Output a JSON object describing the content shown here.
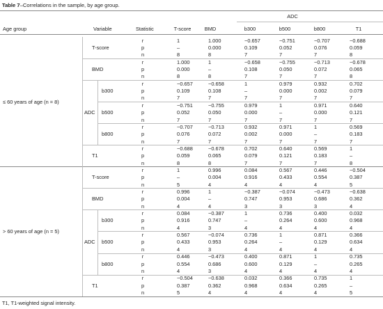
{
  "caption": {
    "label": "Table 7",
    "text": "–Correlations in the sample, by age group."
  },
  "header": {
    "age_group": "Age group",
    "variable": "Variable",
    "statistic": "Statistic",
    "group_label": "ADC",
    "columns": [
      "T-score",
      "BMD",
      "b300",
      "b500",
      "b800",
      "T1"
    ]
  },
  "groups": [
    {
      "label": "≤ 60 years of age (n = 8)",
      "variables": [
        {
          "name": "T-score",
          "rows": [
            {
              "stat": "r",
              "cells": [
                "1",
                "1.000",
                "−0.657",
                "−0.751",
                "−0.707",
                "−0.688"
              ]
            },
            {
              "stat": "p",
              "cells": [
                "–",
                "0.000",
                "0.109",
                "0.052",
                "0.076",
                "0.059"
              ]
            },
            {
              "stat": "n",
              "cells": [
                "8",
                "8",
                "7",
                "7",
                "7",
                "8"
              ]
            }
          ]
        },
        {
          "name": "BMD",
          "rows": [
            {
              "stat": "r",
              "cells": [
                "1.000",
                "1",
                "−0.658",
                "−0.755",
                "−0.713",
                "−0.678"
              ]
            },
            {
              "stat": "p",
              "cells": [
                "0.000",
                "–",
                "0.108",
                "0.050",
                "0.072",
                "0.065"
              ]
            },
            {
              "stat": "n",
              "cells": [
                "8",
                "8",
                "7",
                "7",
                "7",
                "8"
              ]
            }
          ]
        },
        {
          "name": "ADC",
          "subvariables": [
            {
              "name": "b300",
              "rows": [
                {
                  "stat": "r",
                  "cells": [
                    "−0.657",
                    "−0.658",
                    "1",
                    "0.979",
                    "0.932",
                    "0.702"
                  ]
                },
                {
                  "stat": "p",
                  "cells": [
                    "0.109",
                    "0.108",
                    "–",
                    "0.000",
                    "0.002",
                    "0.079"
                  ]
                },
                {
                  "stat": "n",
                  "cells": [
                    "7",
                    "7",
                    "7",
                    "7",
                    "7",
                    "7"
                  ]
                }
              ]
            },
            {
              "name": "b500",
              "rows": [
                {
                  "stat": "r",
                  "cells": [
                    "−0.751",
                    "−0.755",
                    "0.979",
                    "1",
                    "0.971",
                    "0.640"
                  ]
                },
                {
                  "stat": "p",
                  "cells": [
                    "0.052",
                    "0.050",
                    "0.000",
                    "–",
                    "0.000",
                    "0.121"
                  ]
                },
                {
                  "stat": "n",
                  "cells": [
                    "7",
                    "7",
                    "7",
                    "7",
                    "7",
                    "7"
                  ]
                }
              ]
            },
            {
              "name": "b800",
              "rows": [
                {
                  "stat": "r",
                  "cells": [
                    "−0.707",
                    "−0.713",
                    "0.932",
                    "0.971",
                    "1",
                    "0.569"
                  ]
                },
                {
                  "stat": "p",
                  "cells": [
                    "0.076",
                    "0.072",
                    "0.002",
                    "0.000",
                    "–",
                    "0.183"
                  ]
                },
                {
                  "stat": "n",
                  "cells": [
                    "7",
                    "7",
                    "7",
                    "7",
                    "7",
                    "7"
                  ]
                }
              ]
            }
          ]
        },
        {
          "name": "T1",
          "rows": [
            {
              "stat": "r",
              "cells": [
                "−0.688",
                "−0.678",
                "0.702",
                "0.640",
                "0.569",
                "1"
              ]
            },
            {
              "stat": "p",
              "cells": [
                "0.059",
                "0.065",
                "0.079",
                "0.121",
                "0.183",
                "–"
              ]
            },
            {
              "stat": "n",
              "cells": [
                "8",
                "8",
                "7",
                "7",
                "7",
                "8"
              ]
            }
          ]
        }
      ]
    },
    {
      "label": "> 60 years of age (n = 5)",
      "variables": [
        {
          "name": "T-score",
          "rows": [
            {
              "stat": "r",
              "cells": [
                "1",
                "0.996",
                "0.084",
                "0.567",
                "0.446",
                "−0.504"
              ]
            },
            {
              "stat": "p",
              "cells": [
                "–",
                "0.004",
                "0.916",
                "0.433",
                "0.554",
                "0.387"
              ]
            },
            {
              "stat": "n",
              "cells": [
                "5",
                "4",
                "4",
                "4",
                "4",
                "5"
              ]
            }
          ]
        },
        {
          "name": "BMD",
          "rows": [
            {
              "stat": "r",
              "cells": [
                "0.996",
                "1",
                "−0.387",
                "−0.074",
                "−0.473",
                "−0.638"
              ]
            },
            {
              "stat": "p",
              "cells": [
                "0.004",
                "–",
                "0.747",
                "0.953",
                "0.686",
                "0.362"
              ]
            },
            {
              "stat": "n",
              "cells": [
                "4",
                "4",
                "3",
                "3",
                "3",
                "4"
              ]
            }
          ]
        },
        {
          "name": "ADC",
          "subvariables": [
            {
              "name": "b300",
              "rows": [
                {
                  "stat": "r",
                  "cells": [
                    "0.084",
                    "−0.387",
                    "1",
                    "0.736",
                    "0.400",
                    "0.032"
                  ]
                },
                {
                  "stat": "p",
                  "cells": [
                    "0.916",
                    "0.747",
                    "–",
                    "0.264",
                    "0.600",
                    "0.968"
                  ]
                },
                {
                  "stat": "n",
                  "cells": [
                    "4",
                    "3",
                    "4",
                    "4",
                    "4",
                    "4"
                  ]
                }
              ]
            },
            {
              "name": "b500",
              "rows": [
                {
                  "stat": "r",
                  "cells": [
                    "0.567",
                    "−0.074",
                    "0.736",
                    "1",
                    "0.871",
                    "0.366"
                  ]
                },
                {
                  "stat": "p",
                  "cells": [
                    "0.433",
                    "0.953",
                    "0.264",
                    "–",
                    "0.129",
                    "0.634"
                  ]
                },
                {
                  "stat": "n",
                  "cells": [
                    "4",
                    "3",
                    "4",
                    "4",
                    "4",
                    "4"
                  ]
                }
              ]
            },
            {
              "name": "b800",
              "rows": [
                {
                  "stat": "r",
                  "cells": [
                    "0.446",
                    "−0.473",
                    "0.400",
                    "0.871",
                    "1",
                    "0.735"
                  ]
                },
                {
                  "stat": "p",
                  "cells": [
                    "0.554",
                    "0.686",
                    "0.600",
                    "0.129",
                    "–",
                    "0.265"
                  ]
                },
                {
                  "stat": "n",
                  "cells": [
                    "4",
                    "3",
                    "4",
                    "4",
                    "4",
                    "4"
                  ]
                }
              ]
            }
          ]
        },
        {
          "name": "T1",
          "rows": [
            {
              "stat": "r",
              "cells": [
                "−0.504",
                "−0.638",
                "0.032",
                "0.366",
                "0.735",
                "1"
              ]
            },
            {
              "stat": "p",
              "cells": [
                "0.387",
                "0.362",
                "0.968",
                "0.634",
                "0.265",
                "–"
              ]
            },
            {
              "stat": "n",
              "cells": [
                "5",
                "4",
                "4",
                "4",
                "4",
                "5"
              ]
            }
          ]
        }
      ]
    }
  ],
  "footnote": "T1, T1-weighted signal intensity."
}
